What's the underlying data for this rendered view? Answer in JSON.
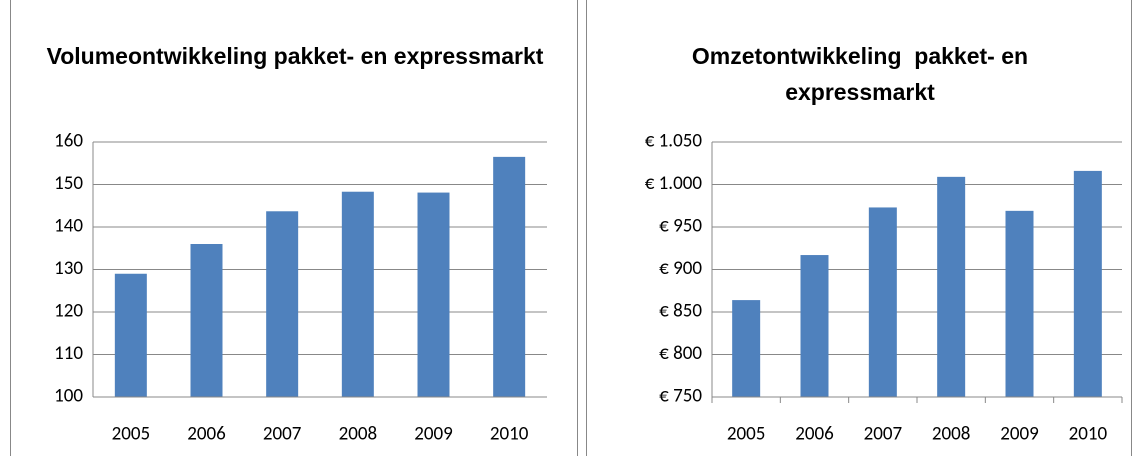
{
  "chart_data": [
    {
      "type": "bar",
      "title": "Volumeontwikkeling pakket- en expressmarkt",
      "categories": [
        "2005",
        "2006",
        "2007",
        "2008",
        "2009",
        "2010"
      ],
      "values": [
        129,
        136,
        143.7,
        148.3,
        148.1,
        156.5
      ],
      "color": "#4f81bd",
      "ylim": [
        100,
        160
      ],
      "yticks": [
        100,
        110,
        120,
        130,
        140,
        150,
        160
      ],
      "grid": true
    },
    {
      "type": "bar",
      "title": "Omzetontwikkeling  pakket- en expressmarkt",
      "categories": [
        "2005",
        "2006",
        "2007",
        "2008",
        "2009",
        "2010"
      ],
      "values": [
        864,
        917,
        973,
        1009,
        969,
        1016
      ],
      "color": "#4f81bd",
      "ylim": [
        750,
        1050
      ],
      "yticks": [
        {
          "value": 750,
          "label": "€ 750"
        },
        {
          "value": 800,
          "label": "€ 800"
        },
        {
          "value": 850,
          "label": "€ 850"
        },
        {
          "value": 900,
          "label": "€ 900"
        },
        {
          "value": 950,
          "label": "€ 950"
        },
        {
          "value": 1000,
          "label": "€ 1.000"
        },
        {
          "value": 1050,
          "label": "€ 1.050"
        }
      ],
      "grid": true
    }
  ]
}
